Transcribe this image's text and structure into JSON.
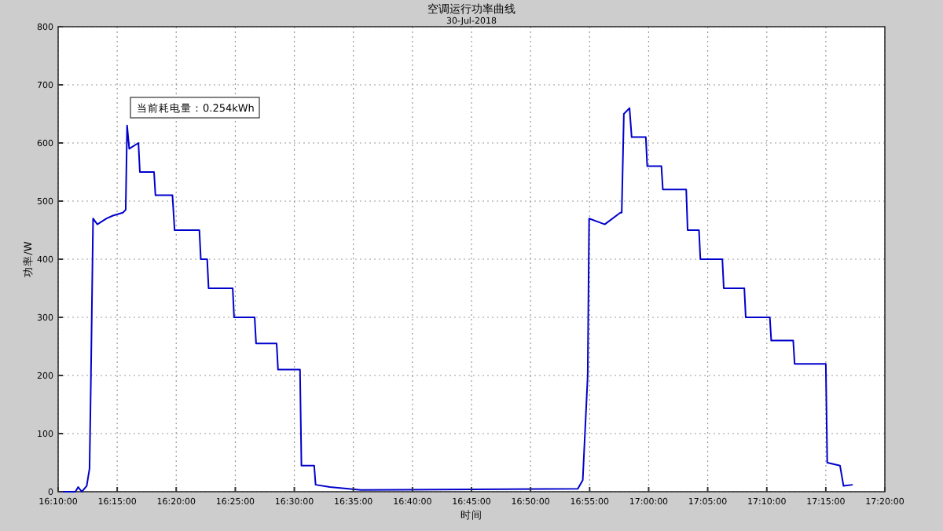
{
  "chart_data": {
    "type": "line",
    "title": "空调运行功率曲线",
    "subtitle": "30-Jul-2018",
    "xlabel": "时间",
    "ylabel": "功率/W",
    "annotations": [
      "当前耗电量：0.254kWh"
    ],
    "x": [
      16.1667,
      16.191,
      16.195,
      16.2,
      16.207,
      16.211,
      16.213,
      16.216,
      16.222,
      16.235,
      16.244,
      16.258,
      16.262,
      16.264,
      16.267,
      16.28,
      16.282,
      16.302,
      16.304,
      16.328,
      16.331,
      16.366,
      16.368,
      16.377,
      16.379,
      16.413,
      16.415,
      16.444,
      16.446,
      16.475,
      16.477,
      16.508,
      16.51,
      16.528,
      16.53,
      16.55,
      16.594,
      16.75,
      16.9,
      16.907,
      16.914,
      16.916,
      16.938,
      16.96,
      16.962,
      16.965,
      16.973,
      16.976,
      16.996,
      16.998,
      17.018,
      17.02,
      17.053,
      17.055,
      17.071,
      17.073,
      17.104,
      17.106,
      17.135,
      17.137,
      17.171,
      17.173,
      17.204,
      17.206,
      17.25,
      17.252,
      17.27,
      17.275,
      17.288
    ],
    "series": [
      {
        "color": "#0000cc",
        "values": [
          0,
          0,
          8,
          0,
          10,
          40,
          200,
          470,
          460,
          470,
          475,
          480,
          485,
          630,
          590,
          600,
          550,
          550,
          510,
          510,
          450,
          450,
          400,
          400,
          350,
          350,
          300,
          300,
          255,
          255,
          210,
          210,
          45,
          45,
          12,
          8,
          3,
          4,
          5,
          20,
          200,
          470,
          460,
          480,
          480,
          650,
          660,
          610,
          610,
          560,
          560,
          520,
          520,
          450,
          450,
          400,
          400,
          350,
          350,
          300,
          300,
          260,
          260,
          220,
          220,
          50,
          45,
          10,
          12
        ]
      }
    ],
    "xlim": [
      16.1667,
      17.3333
    ],
    "xticks": [
      {
        "value": 16.1667,
        "label": "16:10:00"
      },
      {
        "value": 16.25,
        "label": "16:15:00"
      },
      {
        "value": 16.3333,
        "label": "16:20:00"
      },
      {
        "value": 16.4167,
        "label": "16:25:00"
      },
      {
        "value": 16.5,
        "label": "16:30:00"
      },
      {
        "value": 16.5833,
        "label": "16:35:00"
      },
      {
        "value": 16.6667,
        "label": "16:40:00"
      },
      {
        "value": 16.75,
        "label": "16:45:00"
      },
      {
        "value": 16.8333,
        "label": "16:50:00"
      },
      {
        "value": 16.9167,
        "label": "16:55:00"
      },
      {
        "value": 17,
        "label": "17:00:00"
      },
      {
        "value": 17.0833,
        "label": "17:05:00"
      },
      {
        "value": 17.1667,
        "label": "17:10:00"
      },
      {
        "value": 17.25,
        "label": "17:15:00"
      },
      {
        "value": 17.3333,
        "label": "17:20:00"
      }
    ],
    "ylim": [
      0,
      800
    ],
    "yticks": [
      0,
      100,
      200,
      300,
      400,
      500,
      600,
      700,
      800
    ],
    "grid": true,
    "line_style": "solid",
    "marker": "none"
  }
}
